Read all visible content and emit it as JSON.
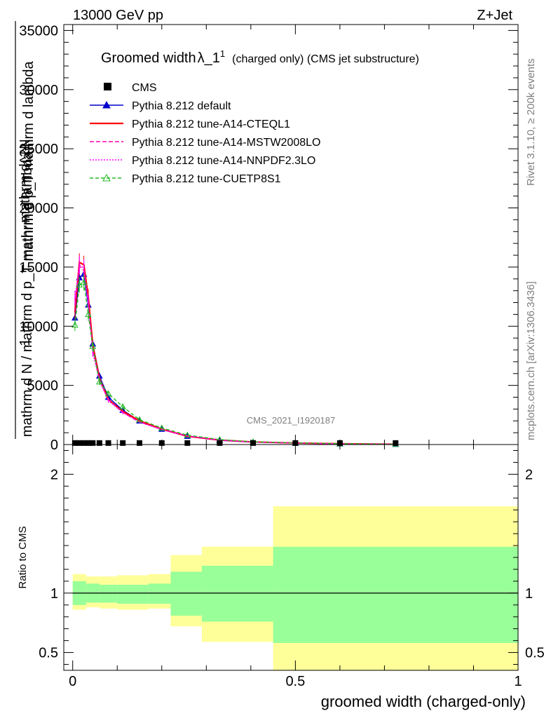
{
  "header": {
    "left": "13000 GeV pp",
    "right": "Z+Jet",
    "side_top": "Rivet 3.1.10, ≥ 200k events",
    "side_bottom": "mcplots.cern.ch [arXiv:1306.3436]",
    "watermark": "CMS_2021_I1920187"
  },
  "chart_data": [
    {
      "type": "line",
      "title_main": "Groomed width",
      "title_lambda": "λ_1",
      "title_sup": "1",
      "title_rest": "(charged only) (CMS jet substructure)",
      "ylabel_top": "1",
      "ylabel_bottom": "mathrm d N / mathrm d p_T mathrm d lambda",
      "ylabel_num": "mathrm d^2N",
      "ylabel_den": "mathrm d p_T mathrm d lambda",
      "xlim": [
        -0.02,
        1.0
      ],
      "ylim": [
        0,
        35500
      ],
      "yticks": [
        "0",
        "5000",
        "10000",
        "15000",
        "20000",
        "25000",
        "30000",
        "35000"
      ],
      "legend": [
        {
          "name": "CMS",
          "color": "#000000",
          "style": "square"
        },
        {
          "name": "Pythia 8.212 default",
          "color": "#0000cc",
          "style": "line-triangle"
        },
        {
          "name": "Pythia 8.212 tune-A14-CTEQL1",
          "color": "#ff0000",
          "style": "line"
        },
        {
          "name": "Pythia 8.212 tune-A14-MSTW2008LO",
          "color": "#ff00aa",
          "style": "dashed"
        },
        {
          "name": "Pythia 8.212 tune-A14-NNPDF2.3LO",
          "color": "#ff00ff",
          "style": "dotted"
        },
        {
          "name": "Pythia 8.212 tune-CUETP8S1",
          "color": "#22bb22",
          "style": "dashed-open-triangle"
        }
      ],
      "x": [
        0.005,
        0.015,
        0.025,
        0.035,
        0.045,
        0.06,
        0.08,
        0.1125,
        0.15,
        0.2,
        0.2575,
        0.33,
        0.405,
        0.5,
        0.6,
        0.725
      ],
      "cms_values": [
        10,
        10,
        10,
        10,
        10,
        10,
        10,
        10,
        10,
        10,
        10,
        10,
        10,
        10,
        10,
        10
      ],
      "series": [
        {
          "name": "Pythia 8.212 default",
          "values": [
            10700,
            14100,
            14400,
            11800,
            8500,
            5800,
            4000,
            2900,
            2000,
            1300,
            700,
            350,
            200,
            120,
            60,
            20
          ]
        },
        {
          "name": "Pythia 8.212 tune-A14-CTEQL1",
          "values": [
            11200,
            15400,
            15200,
            12500,
            8400,
            5600,
            3800,
            2800,
            2000,
            1300,
            700,
            380,
            220,
            130,
            70,
            25
          ]
        },
        {
          "name": "Pythia 8.212 tune-A14-MSTW2008LO",
          "values": [
            11800,
            15100,
            14700,
            12100,
            8000,
            5500,
            3800,
            2700,
            1900,
            1300,
            720,
            380,
            210,
            120,
            60,
            20
          ]
        },
        {
          "name": "Pythia 8.212 tune-A14-NNPDF2.3LO",
          "values": [
            12400,
            15200,
            14900,
            12000,
            7800,
            5400,
            3700,
            2700,
            1900,
            1250,
            720,
            370,
            210,
            120,
            60,
            20
          ]
        },
        {
          "name": "Pythia 8.212 tune-CUETP8S1",
          "values": [
            10100,
            13500,
            13700,
            11000,
            8300,
            5300,
            4300,
            3200,
            2100,
            1400,
            800,
            420,
            230,
            140,
            70,
            25
          ]
        }
      ]
    },
    {
      "type": "area",
      "ylabel": "Ratio to CMS",
      "xlabel": "groomed width (charged-only)",
      "xlim": [
        -0.02,
        1.0
      ],
      "ylim": [
        0.35,
        2.25
      ],
      "yticks": [
        "0.5",
        "1",
        "2"
      ],
      "xticks": [
        "0",
        "0.5",
        "1"
      ],
      "bins": [
        {
          "x0": 0.0,
          "x1": 0.03,
          "stat_lo": 0.9,
          "stat_hi": 1.1,
          "tot_lo": 0.86,
          "tot_hi": 1.16
        },
        {
          "x0": 0.03,
          "x1": 0.06,
          "stat_lo": 0.92,
          "stat_hi": 1.08,
          "tot_lo": 0.88,
          "tot_hi": 1.14
        },
        {
          "x0": 0.06,
          "x1": 0.1,
          "stat_lo": 0.92,
          "stat_hi": 1.07,
          "tot_lo": 0.87,
          "tot_hi": 1.14
        },
        {
          "x0": 0.1,
          "x1": 0.17,
          "stat_lo": 0.91,
          "stat_hi": 1.07,
          "tot_lo": 0.86,
          "tot_hi": 1.15
        },
        {
          "x0": 0.17,
          "x1": 0.22,
          "stat_lo": 0.91,
          "stat_hi": 1.08,
          "tot_lo": 0.87,
          "tot_hi": 1.16
        },
        {
          "x0": 0.22,
          "x1": 0.29,
          "stat_lo": 0.81,
          "stat_hi": 1.18,
          "tot_lo": 0.72,
          "tot_hi": 1.32
        },
        {
          "x0": 0.29,
          "x1": 0.45,
          "stat_lo": 0.76,
          "stat_hi": 1.23,
          "tot_lo": 0.59,
          "tot_hi": 1.39
        },
        {
          "x0": 0.45,
          "x1": 1.0,
          "stat_lo": 0.58,
          "stat_hi": 1.39,
          "tot_lo": 0.35,
          "tot_hi": 1.73
        }
      ],
      "colors": {
        "stat": "#99ff99",
        "total": "#ffff99",
        "line": "#000000"
      }
    }
  ]
}
